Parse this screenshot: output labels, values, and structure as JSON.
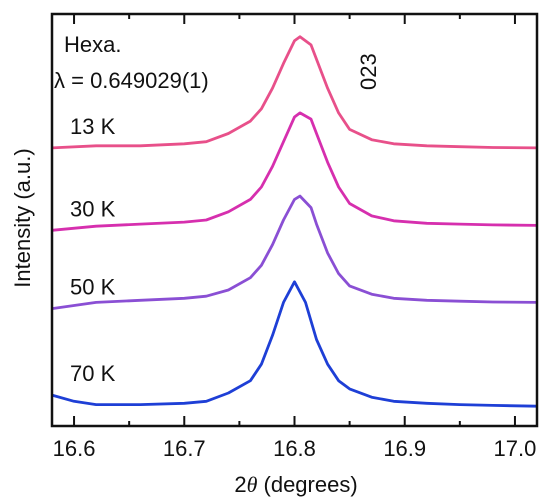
{
  "chart_data": {
    "type": "line",
    "xlabel": "2θ (degrees)",
    "xlabel_prefix": "2",
    "xlabel_symbol": "θ",
    "xlabel_suffix": " (degrees)",
    "ylabel": "Intensity (a.u.)",
    "xlim": [
      16.58,
      17.02
    ],
    "ylim": [
      0,
      100
    ],
    "xticks": [
      16.6,
      16.7,
      16.8,
      16.9,
      17.0
    ],
    "xtick_labels": [
      "16.6",
      "16.7",
      "16.8",
      "16.9",
      "17.0"
    ],
    "annotations": {
      "structure": "Hexa.",
      "wavelength": "λ = 0.649029(1)",
      "reflection": "023"
    },
    "grid": false,
    "series": [
      {
        "name": "13 K",
        "color": "#e8508a",
        "x": [
          16.58,
          16.62,
          16.66,
          16.7,
          16.72,
          16.74,
          16.76,
          16.77,
          16.78,
          16.79,
          16.8,
          16.805,
          16.815,
          16.82,
          16.83,
          16.84,
          16.85,
          16.87,
          16.89,
          16.92,
          16.95,
          16.98,
          17.02
        ],
        "y": [
          67.5,
          68,
          68,
          68.5,
          69,
          71,
          74,
          77,
          82,
          88,
          93.5,
          94.5,
          92.5,
          89,
          82,
          76,
          72,
          69.5,
          68.5,
          68,
          67.8,
          67.6,
          67.5
        ]
      },
      {
        "name": "30 K",
        "color": "#d62fae",
        "x": [
          16.58,
          16.62,
          16.66,
          16.7,
          16.72,
          16.74,
          16.76,
          16.77,
          16.78,
          16.79,
          16.8,
          16.805,
          16.815,
          16.82,
          16.83,
          16.84,
          16.85,
          16.87,
          16.89,
          16.92,
          16.95,
          16.98,
          17.02
        ],
        "y": [
          47.5,
          48.5,
          49,
          49.5,
          50,
          52,
          55,
          58,
          63,
          69,
          75,
          76,
          74.5,
          71,
          64,
          58,
          54,
          51,
          49.8,
          49.2,
          49,
          48.8,
          48.7
        ]
      },
      {
        "name": "50 K",
        "color": "#8a4fd4",
        "x": [
          16.58,
          16.62,
          16.66,
          16.7,
          16.72,
          16.74,
          16.76,
          16.77,
          16.78,
          16.79,
          16.8,
          16.805,
          16.815,
          16.82,
          16.83,
          16.84,
          16.85,
          16.87,
          16.89,
          16.92,
          16.95,
          16.98,
          17.02
        ],
        "y": [
          28.5,
          30,
          30.5,
          31,
          31.5,
          33,
          36,
          39,
          44,
          50,
          55,
          55.8,
          53,
          49,
          42,
          37,
          34,
          32,
          31,
          30.5,
          30.3,
          30.1,
          30
        ]
      },
      {
        "name": "70 K",
        "color": "#1e3fd6",
        "x": [
          16.58,
          16.6,
          16.62,
          16.66,
          16.7,
          16.72,
          16.74,
          16.76,
          16.77,
          16.78,
          16.79,
          16.8,
          16.81,
          16.82,
          16.83,
          16.84,
          16.85,
          16.87,
          16.89,
          16.92,
          16.95,
          16.98,
          17.02
        ],
        "y": [
          7.5,
          6,
          5.2,
          5.2,
          5.5,
          6,
          8,
          11,
          15,
          22,
          30,
          35,
          30,
          21,
          15,
          11,
          9,
          7,
          6,
          5.5,
          5.2,
          5,
          4.8
        ]
      }
    ]
  }
}
